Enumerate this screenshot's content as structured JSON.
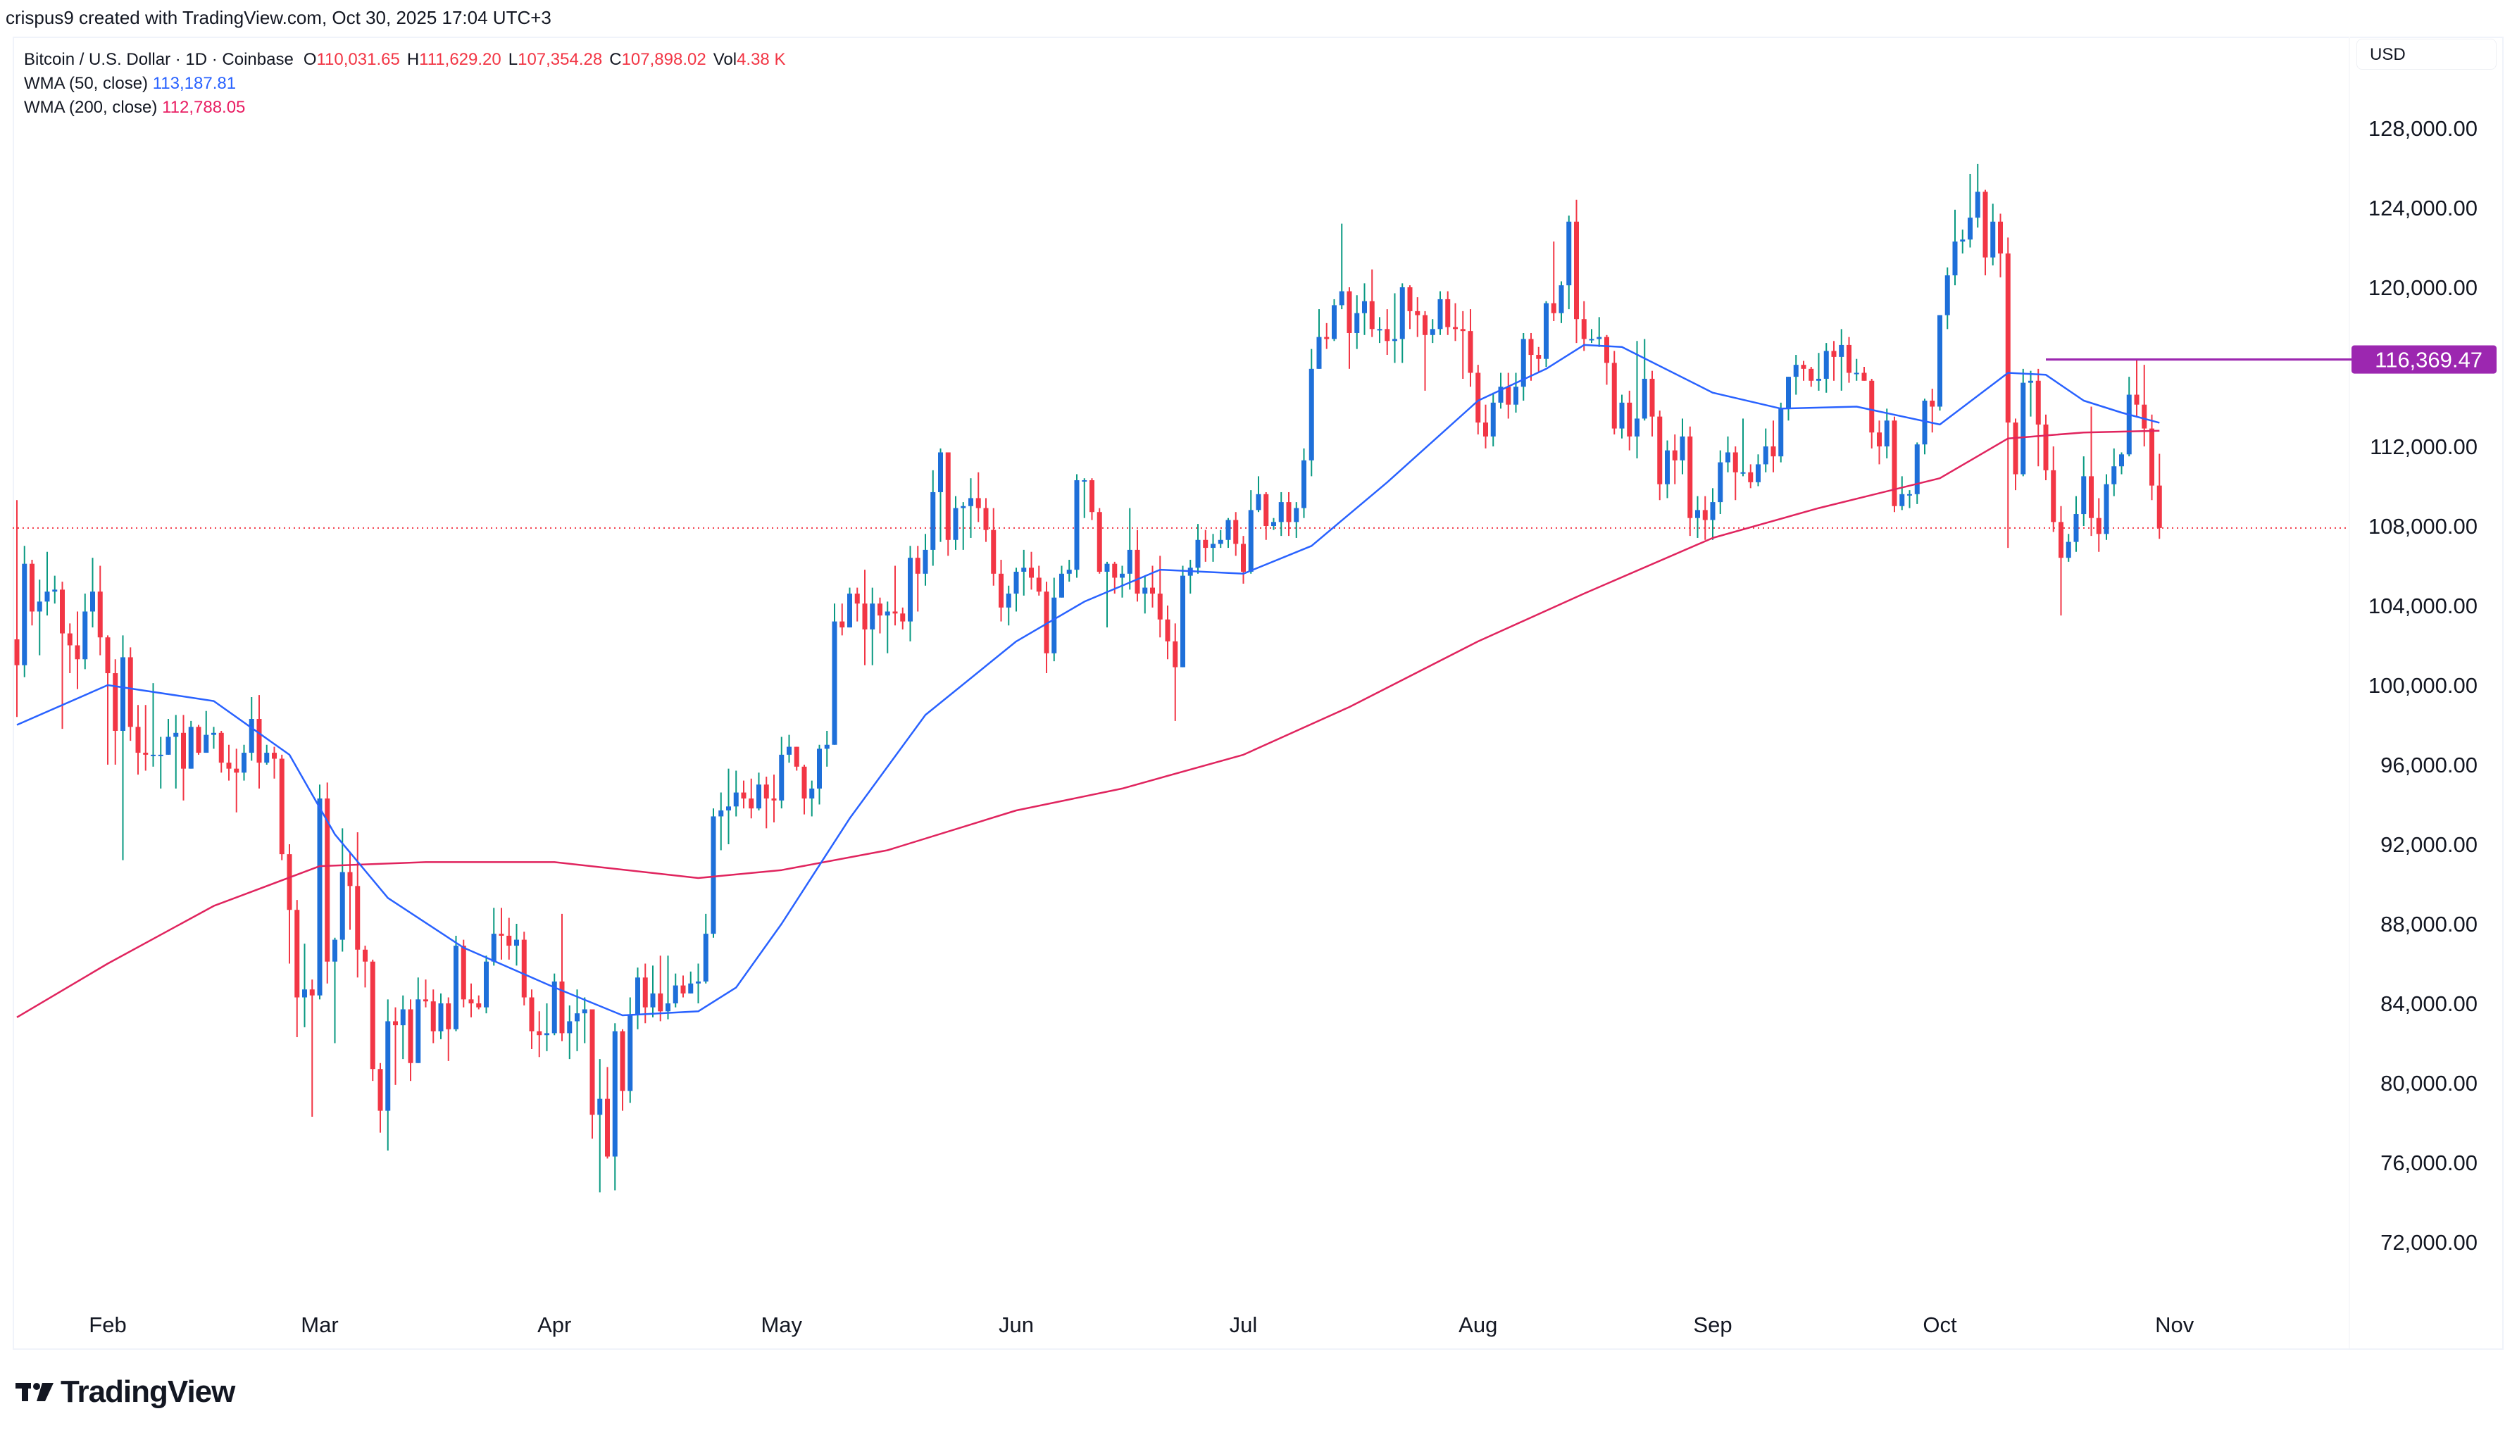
{
  "watermark_line": "crispus9 created with TradingView.com, Oct 30, 2025 17:04 UTC+3",
  "legend": {
    "symbol": "Bitcoin / U.S. Dollar · 1D · Coinbase",
    "o_label": "O",
    "o": "110,031.65",
    "h_label": "H",
    "h": "111,629.20",
    "l_label": "L",
    "l": "107,354.28",
    "c_label": "C",
    "c": "107,898.02",
    "vol_label": "Vol",
    "vol": "4.38 K",
    "wma50_label": "WMA (50, close)",
    "wma50": "113,187.81",
    "wma200_label": "WMA (200, close)",
    "wma200": "112,788.05"
  },
  "currency": "USD",
  "price_marker": "116,369.47",
  "brand": "TradingView",
  "colors": {
    "up_body": "#1e6fd9",
    "up_wick": "#089981",
    "down": "#f23645",
    "wma50": "#2962ff",
    "wma200": "#e0245e",
    "marker": "#9c27b0",
    "last_price_line": "#f23645"
  },
  "chart_data": {
    "type": "candlestick",
    "start_date": "2025-01-20",
    "first_open": 102300,
    "close": [
      101000,
      106100,
      103700,
      104200,
      104700,
      104800,
      102600,
      102000,
      101300,
      103700,
      104700,
      102400,
      100600,
      97700,
      101400,
      97900,
      96600,
      96500,
      96500,
      96500,
      97400,
      97600,
      95800,
      97900,
      96600,
      97500,
      97600,
      96100,
      95800,
      95600,
      96600,
      98300,
      96100,
      96600,
      96300,
      91500,
      88700,
      84300,
      84700,
      84400,
      94300,
      86100,
      87200,
      90600,
      89900,
      86700,
      86100,
      80700,
      78600,
      83100,
      82900,
      83700,
      81000,
      84200,
      84100,
      82600,
      84000,
      82700,
      86900,
      84200,
      84000,
      83800,
      86100,
      87500,
      87400,
      86900,
      87200,
      84300,
      82600,
      82400,
      82500,
      85100,
      82500,
      83100,
      83500,
      83700,
      78400,
      79200,
      76300,
      82600,
      79600,
      83400,
      85300,
      83800,
      84500,
      83600,
      84000,
      84900,
      84500,
      85000,
      85100,
      87500,
      93400,
      93700,
      93900,
      94600,
      94300,
      93800,
      95000,
      94300,
      94200,
      96500,
      96900,
      95900,
      94300,
      94800,
      96800,
      97000,
      103200,
      102900,
      104600,
      104100,
      102800,
      104100,
      103500,
      103700,
      103600,
      103200,
      106400,
      105600,
      106800,
      109700,
      111700,
      107300,
      108900,
      109000,
      109400,
      108900,
      107800,
      105600,
      103900,
      104600,
      105700,
      105900,
      105400,
      104700,
      101600,
      104400,
      105600,
      105800,
      110300,
      110300,
      108700,
      105700,
      106100,
      105400,
      105600,
      106800,
      104600,
      104900,
      104600,
      103300,
      102200,
      100900,
      105500,
      105900,
      107300,
      106900,
      107100,
      107300,
      108300,
      107100,
      105700,
      108800,
      109600,
      108000,
      108200,
      109200,
      108200,
      108900,
      111300,
      115900,
      117500,
      117400,
      119100,
      119800,
      117700,
      118700,
      119300,
      117900,
      117900,
      117300,
      117400,
      120000,
      118800,
      118600,
      117600,
      117900,
      119400,
      118000,
      117900,
      117800,
      115700,
      113200,
      112500,
      114200,
      115000,
      114100,
      115000,
      117400,
      116600,
      116400,
      119200,
      118700,
      120100,
      123300,
      118400,
      117400,
      117400,
      117500,
      116200,
      112900,
      114200,
      112500,
      113400,
      115400,
      113500,
      110100,
      111800,
      111300,
      112500,
      108400,
      108800,
      108300,
      109200,
      111200,
      111700,
      110700,
      110700,
      110200,
      111100,
      112000,
      111500,
      113900,
      115500,
      116100,
      115900,
      115300,
      115400,
      116800,
      116500,
      117100,
      115700,
      115700,
      115300,
      112700,
      112000,
      113300,
      109000,
      109600,
      109600,
      112100,
      114300,
      114000,
      118600,
      120600,
      122300,
      122400,
      123500,
      124800,
      121500,
      123300,
      121700,
      113200,
      110600,
      115200,
      115300,
      113100,
      110800,
      108200,
      106400,
      107200,
      108600,
      110500,
      108400,
      107600,
      110100,
      111000,
      111600,
      114600,
      114100,
      112900,
      110031.65,
      107898.02
    ],
    "high": [
      109300,
      107000,
      106300,
      105300,
      106700,
      105500,
      105200,
      103100,
      103700,
      104600,
      106400,
      106000,
      102500,
      101300,
      102500,
      101900,
      99000,
      99000,
      100100,
      97400,
      98300,
      98500,
      98500,
      98200,
      98000,
      98700,
      97900,
      97700,
      97000,
      96800,
      97000,
      99400,
      99500,
      97000,
      96900,
      96500,
      92000,
      89200,
      87000,
      85200,
      95000,
      95100,
      87300,
      92800,
      91600,
      92600,
      86900,
      86200,
      81000,
      84200,
      83800,
      84400,
      84200,
      85300,
      85200,
      84700,
      84500,
      84300,
      87400,
      87200,
      85000,
      84400,
      86400,
      88800,
      88800,
      88300,
      88000,
      87600,
      84700,
      83600,
      84000,
      85500,
      88500,
      83900,
      84700,
      84300,
      83700,
      81200,
      80800,
      83000,
      82700,
      84300,
      85800,
      86000,
      85900,
      86400,
      86400,
      85500,
      85400,
      85600,
      86000,
      88500,
      93800,
      94600,
      95800,
      95700,
      95200,
      95300,
      95600,
      95400,
      95500,
      97400,
      97500,
      96900,
      96000,
      95200,
      97000,
      97700,
      104100,
      104100,
      104900,
      104900,
      105800,
      104900,
      104400,
      104200,
      106000,
      103900,
      107000,
      107000,
      107600,
      110800,
      111900,
      111700,
      109500,
      109200,
      110400,
      110700,
      109400,
      108900,
      106300,
      105000,
      105900,
      106800,
      106700,
      106000,
      105200,
      105400,
      106000,
      106300,
      110600,
      110400,
      110400,
      108900,
      106200,
      106200,
      106000,
      108900,
      107800,
      105500,
      106000,
      106500,
      104000,
      103100,
      106000,
      106300,
      108100,
      107800,
      107600,
      107800,
      108400,
      108700,
      107500,
      109800,
      110500,
      109700,
      108400,
      109700,
      109700,
      109200,
      111900,
      116900,
      118900,
      118200,
      119400,
      123200,
      120000,
      119600,
      120200,
      120900,
      118500,
      118900,
      119700,
      120200,
      120100,
      119500,
      118800,
      118400,
      119800,
      119800,
      119200,
      118800,
      118900,
      116100,
      114100,
      114700,
      115700,
      115700,
      115700,
      117700,
      117700,
      117000,
      119300,
      122300,
      120300,
      123600,
      124400,
      119300,
      117900,
      118500,
      117600,
      116800,
      114600,
      114800,
      117300,
      117400,
      115800,
      113800,
      112300,
      112600,
      113400,
      113000,
      109500,
      109500,
      109900,
      111800,
      112500,
      112000,
      113400,
      111100,
      111600,
      112900,
      113300,
      114200,
      115500,
      116600,
      116300,
      116000,
      116700,
      117200,
      117300,
      117900,
      117500,
      116400,
      116000,
      115400,
      113300,
      113900,
      113500,
      110500,
      109800,
      112200,
      114400,
      114900,
      118600,
      121000,
      123900,
      122900,
      125700,
      126200,
      124900,
      124200,
      123700,
      122500,
      113400,
      115900,
      115800,
      115900,
      113600,
      112000,
      109000,
      107600,
      109500,
      111500,
      114000,
      109400,
      110600,
      111900,
      111700,
      115500,
      116400,
      116100,
      113600,
      111629.2
    ],
    "low": [
      98400,
      100400,
      103000,
      101500,
      103500,
      104100,
      97800,
      100600,
      99800,
      100800,
      102900,
      101500,
      96000,
      96000,
      91200,
      97200,
      95500,
      95700,
      95900,
      94800,
      96600,
      94800,
      94200,
      96300,
      96500,
      97000,
      96800,
      95600,
      95200,
      93600,
      95200,
      96200,
      94800,
      96000,
      95300,
      91200,
      86000,
      82300,
      82800,
      78300,
      84200,
      85000,
      82000,
      86600,
      87700,
      85300,
      84800,
      80100,
      77500,
      76600,
      79900,
      81200,
      80100,
      81000,
      83800,
      82000,
      82200,
      81100,
      82600,
      83800,
      83300,
      83700,
      83500,
      85900,
      86200,
      86200,
      85900,
      83900,
      81700,
      81300,
      81600,
      82400,
      82100,
      81200,
      81600,
      82000,
      77200,
      74500,
      76200,
      74600,
      78600,
      79000,
      82700,
      83000,
      83300,
      83100,
      83200,
      83800,
      84300,
      84600,
      84000,
      85000,
      87300,
      91700,
      92000,
      93400,
      93800,
      93300,
      93700,
      92800,
      93100,
      93800,
      96100,
      95700,
      93500,
      93400,
      94000,
      95900,
      97000,
      102500,
      102900,
      103200,
      101000,
      101000,
      102600,
      101600,
      103000,
      102800,
      102200,
      103700,
      105000,
      106000,
      107200,
      106500,
      106800,
      106800,
      107400,
      108200,
      107200,
      105000,
      103200,
      103000,
      103700,
      104500,
      104800,
      104500,
      100600,
      101200,
      104400,
      105200,
      105400,
      108400,
      108300,
      105600,
      102900,
      104600,
      104400,
      104800,
      104200,
      103600,
      103900,
      102400,
      101300,
      98200,
      100900,
      104600,
      105600,
      106200,
      106200,
      106900,
      106900,
      106500,
      105100,
      105600,
      108700,
      107300,
      107800,
      107500,
      107500,
      107400,
      108400,
      110500,
      115900,
      116900,
      117300,
      118900,
      115900,
      116900,
      117600,
      117500,
      117200,
      116600,
      116200,
      116200,
      117900,
      117500,
      114800,
      117200,
      117600,
      117600,
      117300,
      115400,
      115000,
      112600,
      111900,
      112000,
      113900,
      113400,
      113700,
      114300,
      115300,
      115700,
      116000,
      118300,
      118200,
      118900,
      117200,
      116800,
      117200,
      117000,
      115100,
      112600,
      112400,
      111800,
      111400,
      113300,
      112500,
      109300,
      109400,
      110100,
      110600,
      107500,
      107400,
      107300,
      107300,
      108600,
      110700,
      109300,
      110500,
      109900,
      110000,
      110700,
      110700,
      111200,
      113300,
      114600,
      115300,
      115000,
      114800,
      114700,
      115300,
      114800,
      115200,
      115300,
      115300,
      111900,
      111100,
      111400,
      108700,
      108800,
      108900,
      109100,
      111600,
      112700,
      113800,
      117900,
      120100,
      121700,
      122000,
      123000,
      120600,
      121100,
      120500,
      106900,
      109800,
      110500,
      113500,
      111000,
      110300,
      107700,
      103500,
      106200,
      106700,
      108000,
      107500,
      106700,
      107300,
      109500,
      110600,
      111500,
      113500,
      112000,
      109300,
      107354.28
    ],
    "wma50": [
      [
        "2025-01-20",
        98000
      ],
      [
        "2025-02-01",
        100000
      ],
      [
        "2025-02-15",
        99200
      ],
      [
        "2025-02-25",
        96500
      ],
      [
        "2025-03-03",
        92500
      ],
      [
        "2025-03-10",
        89300
      ],
      [
        "2025-03-20",
        86800
      ],
      [
        "2025-04-01",
        84800
      ],
      [
        "2025-04-10",
        83400
      ],
      [
        "2025-04-20",
        83600
      ],
      [
        "2025-04-25",
        84800
      ],
      [
        "2025-05-01",
        88000
      ],
      [
        "2025-05-10",
        93300
      ],
      [
        "2025-05-20",
        98500
      ],
      [
        "2025-06-01",
        102200
      ],
      [
        "2025-06-10",
        104200
      ],
      [
        "2025-06-20",
        105800
      ],
      [
        "2025-07-01",
        105600
      ],
      [
        "2025-07-10",
        107000
      ],
      [
        "2025-07-20",
        110200
      ],
      [
        "2025-08-01",
        114300
      ],
      [
        "2025-08-10",
        115900
      ],
      [
        "2025-08-15",
        117100
      ],
      [
        "2025-08-20",
        117000
      ],
      [
        "2025-09-01",
        114700
      ],
      [
        "2025-09-10",
        113900
      ],
      [
        "2025-09-20",
        114000
      ],
      [
        "2025-10-01",
        113100
      ],
      [
        "2025-10-10",
        115700
      ],
      [
        "2025-10-15",
        115600
      ],
      [
        "2025-10-20",
        114300
      ],
      [
        "2025-10-25",
        113700
      ],
      [
        "2025-10-30",
        113187.81
      ]
    ],
    "wma200": [
      [
        "2025-01-20",
        83300
      ],
      [
        "2025-02-01",
        86000
      ],
      [
        "2025-02-15",
        88900
      ],
      [
        "2025-03-01",
        90900
      ],
      [
        "2025-03-15",
        91100
      ],
      [
        "2025-04-01",
        91100
      ],
      [
        "2025-04-20",
        90300
      ],
      [
        "2025-05-01",
        90700
      ],
      [
        "2025-05-15",
        91700
      ],
      [
        "2025-06-01",
        93700
      ],
      [
        "2025-06-15",
        94800
      ],
      [
        "2025-07-01",
        96500
      ],
      [
        "2025-07-15",
        98900
      ],
      [
        "2025-08-01",
        102200
      ],
      [
        "2025-08-15",
        104600
      ],
      [
        "2025-09-01",
        107400
      ],
      [
        "2025-09-15",
        108900
      ],
      [
        "2025-10-01",
        110400
      ],
      [
        "2025-10-10",
        112400
      ],
      [
        "2025-10-20",
        112700
      ],
      [
        "2025-10-30",
        112788.05
      ]
    ],
    "horizontal_line": {
      "price": 116369.47,
      "from": "2025-10-15"
    },
    "last_price_line": 107898.02,
    "x_ticks": [
      [
        "2025-02-01",
        "Feb"
      ],
      [
        "2025-03-01",
        "Mar"
      ],
      [
        "2025-04-01",
        "Apr"
      ],
      [
        "2025-05-01",
        "May"
      ],
      [
        "2025-06-01",
        "Jun"
      ],
      [
        "2025-07-01",
        "Jul"
      ],
      [
        "2025-08-01",
        "Aug"
      ],
      [
        "2025-09-01",
        "Sep"
      ],
      [
        "2025-10-01",
        "Oct"
      ],
      [
        "2025-11-01",
        "Nov"
      ]
    ],
    "y_ticks": [
      128000,
      124000,
      120000,
      112000,
      108000,
      104000,
      100000,
      96000,
      92000,
      88000,
      84000,
      80000,
      76000,
      72000
    ],
    "y_tick_labels": [
      "128,000.00",
      "124,000.00",
      "120,000.00",
      "112,000.00",
      "108,000.00",
      "104,000.00",
      "100,000.00",
      "96,000.00",
      "92,000.00",
      "88,000.00",
      "84,000.00",
      "80,000.00",
      "76,000.00",
      "72,000.00"
    ],
    "ylabel": "USD",
    "grid": false
  }
}
